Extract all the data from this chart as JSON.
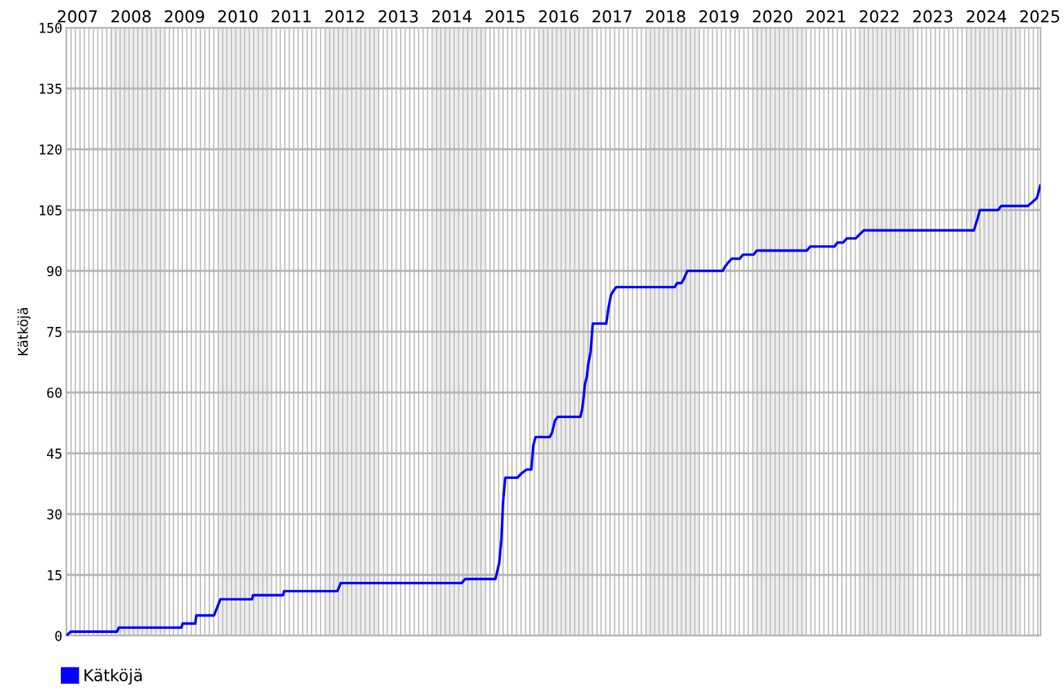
{
  "chart_data": {
    "type": "line",
    "ylabel": "Kätköjä",
    "xlim": [
      "2007-02-28",
      "2025-05-20"
    ],
    "xticks": [
      {
        "value": "2007-05-15",
        "label": "2007"
      },
      {
        "value": "2008-05-15",
        "label": "2008"
      },
      {
        "value": "2009-05-15",
        "label": "2009"
      },
      {
        "value": "2010-05-15",
        "label": "2010"
      },
      {
        "value": "2011-05-15",
        "label": "2011"
      },
      {
        "value": "2012-05-15",
        "label": "2012"
      },
      {
        "value": "2013-05-15",
        "label": "2013"
      },
      {
        "value": "2014-05-15",
        "label": "2014"
      },
      {
        "value": "2015-05-15",
        "label": "2015"
      },
      {
        "value": "2016-05-15",
        "label": "2016"
      },
      {
        "value": "2017-05-15",
        "label": "2017"
      },
      {
        "value": "2018-05-15",
        "label": "2018"
      },
      {
        "value": "2019-05-15",
        "label": "2019"
      },
      {
        "value": "2020-05-15",
        "label": "2020"
      },
      {
        "value": "2021-05-15",
        "label": "2021"
      },
      {
        "value": "2022-05-15",
        "label": "2022"
      },
      {
        "value": "2023-05-15",
        "label": "2023"
      },
      {
        "value": "2024-05-15",
        "label": "2024"
      },
      {
        "value": "2025-05-15",
        "label": "2025"
      }
    ],
    "ylim": [
      0,
      150
    ],
    "yticks": [
      0,
      15,
      30,
      45,
      60,
      75,
      90,
      105,
      120,
      135,
      150
    ],
    "grid": true,
    "legend": "bottom left",
    "marker": "none",
    "line_style": "solid",
    "bands": [
      {
        "axis": "x",
        "from": "2008-01-01",
        "to": "2009-01-01",
        "color": "#eeeeee"
      },
      {
        "axis": "x",
        "from": "2010-01-01",
        "to": "2011-01-01",
        "color": "#eeeeee"
      },
      {
        "axis": "x",
        "from": "2012-01-01",
        "to": "2013-01-01",
        "color": "#eeeeee"
      },
      {
        "axis": "x",
        "from": "2014-01-01",
        "to": "2015-01-01",
        "color": "#eeeeee"
      },
      {
        "axis": "x",
        "from": "2016-01-01",
        "to": "2017-01-01",
        "color": "#eeeeee"
      },
      {
        "axis": "x",
        "from": "2018-01-01",
        "to": "2019-01-01",
        "color": "#eeeeee"
      },
      {
        "axis": "x",
        "from": "2020-01-01",
        "to": "2021-01-01",
        "color": "#eeeeee"
      },
      {
        "axis": "x",
        "from": "2022-01-01",
        "to": "2023-01-01",
        "color": "#eeeeee"
      },
      {
        "axis": "x",
        "from": "2024-01-01",
        "to": "2025-01-01",
        "color": "#eeeeee"
      }
    ],
    "series": [
      {
        "name": "Kätköjä",
        "color": "#0000ff",
        "x": [
          "2007-02-28",
          "2007-03-30",
          "2008-02-10",
          "2008-02-21",
          "2009-04-25",
          "2009-05-02",
          "2009-07-28",
          "2009-08-04",
          "2009-12-03",
          "2010-01-16",
          "2010-08-20",
          "2010-08-27",
          "2011-03-20",
          "2011-03-27",
          "2012-03-25",
          "2012-04-17",
          "2014-07-23",
          "2014-08-15",
          "2015-03-10",
          "2015-04-05",
          "2015-04-20",
          "2015-05-01",
          "2015-05-16",
          "2015-08-08",
          "2015-09-02",
          "2015-10-09",
          "2015-11-10",
          "2015-11-24",
          "2015-12-09",
          "2016-03-14",
          "2016-03-30",
          "2016-04-19",
          "2016-05-08",
          "2016-10-11",
          "2016-10-23",
          "2016-11-02",
          "2016-11-10",
          "2016-11-24",
          "2016-12-03",
          "2016-12-19",
          "2017-01-03",
          "2017-04-05",
          "2017-04-21",
          "2017-05-07",
          "2017-05-22",
          "2017-06-12",
          "2018-07-16",
          "2018-08-03",
          "2018-09-01",
          "2018-09-17",
          "2018-10-11",
          "2019-06-09",
          "2019-06-25",
          "2019-07-16",
          "2019-08-10",
          "2019-10-04",
          "2019-10-26",
          "2020-01-06",
          "2020-01-28",
          "2021-01-05",
          "2021-01-27",
          "2021-07-12",
          "2021-08-02",
          "2021-09-10",
          "2021-10-04",
          "2021-12-04",
          "2022-01-29",
          "2024-02-20",
          "2024-03-17",
          "2024-04-01",
          "2024-08-03",
          "2024-08-24",
          "2025-02-22",
          "2025-03-26",
          "2025-04-26",
          "2025-05-18"
        ],
        "values": [
          0,
          1,
          1,
          2,
          2,
          3,
          3,
          5,
          5,
          9,
          9,
          10,
          10,
          11,
          11,
          13,
          13,
          14,
          14,
          18,
          24,
          33,
          39,
          39,
          40,
          41,
          41,
          47,
          49,
          49,
          50,
          53,
          54,
          54,
          56,
          59,
          62,
          64,
          67,
          70,
          77,
          77,
          81,
          84,
          85,
          86,
          86,
          87,
          87,
          88,
          90,
          90,
          91,
          92,
          93,
          93,
          94,
          94,
          95,
          95,
          96,
          96,
          97,
          97,
          98,
          98,
          100,
          100,
          103,
          105,
          105,
          106,
          106,
          107,
          108,
          111
        ]
      }
    ]
  }
}
